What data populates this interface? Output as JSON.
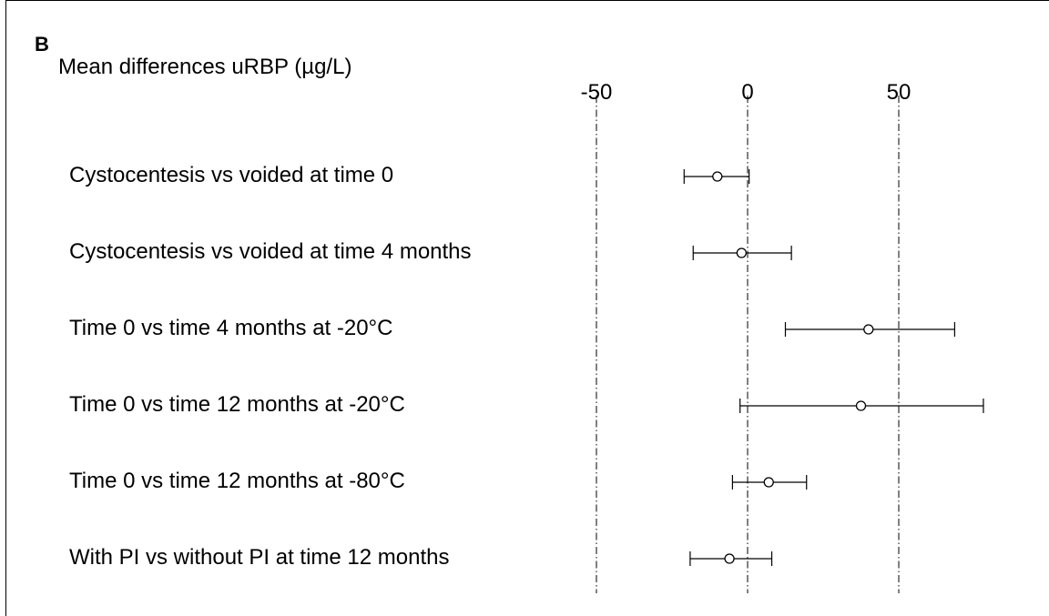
{
  "panel_label": "B",
  "chart_data": {
    "type": "forest",
    "title": "Mean differences uRBP (µg/L)",
    "xticks": [
      -50,
      0,
      50
    ],
    "xlim": [
      -50,
      80
    ],
    "grid": "vertical dash-dot lines at ticks",
    "rows": [
      {
        "label": "Cystocentesis vs voided at time 0",
        "mean": -10,
        "lower": -21,
        "upper": 0.5
      },
      {
        "label": "Cystocentesis vs voided at time 4 months",
        "mean": -2,
        "lower": -18,
        "upper": 14.5
      },
      {
        "label": "Time 0 vs time 4 months at -20°C",
        "mean": 40,
        "lower": 12.5,
        "upper": 68.5
      },
      {
        "label": "Time 0 vs time 12 months at -20°C",
        "mean": 37.5,
        "lower": -2.5,
        "upper": 78
      },
      {
        "label": "Time 0 vs time 12 months at -80°C",
        "mean": 7,
        "lower": -5,
        "upper": 19.5
      },
      {
        "label": "With PI vs without PI at time 12 months",
        "mean": -6,
        "lower": -19,
        "upper": 8
      }
    ]
  }
}
